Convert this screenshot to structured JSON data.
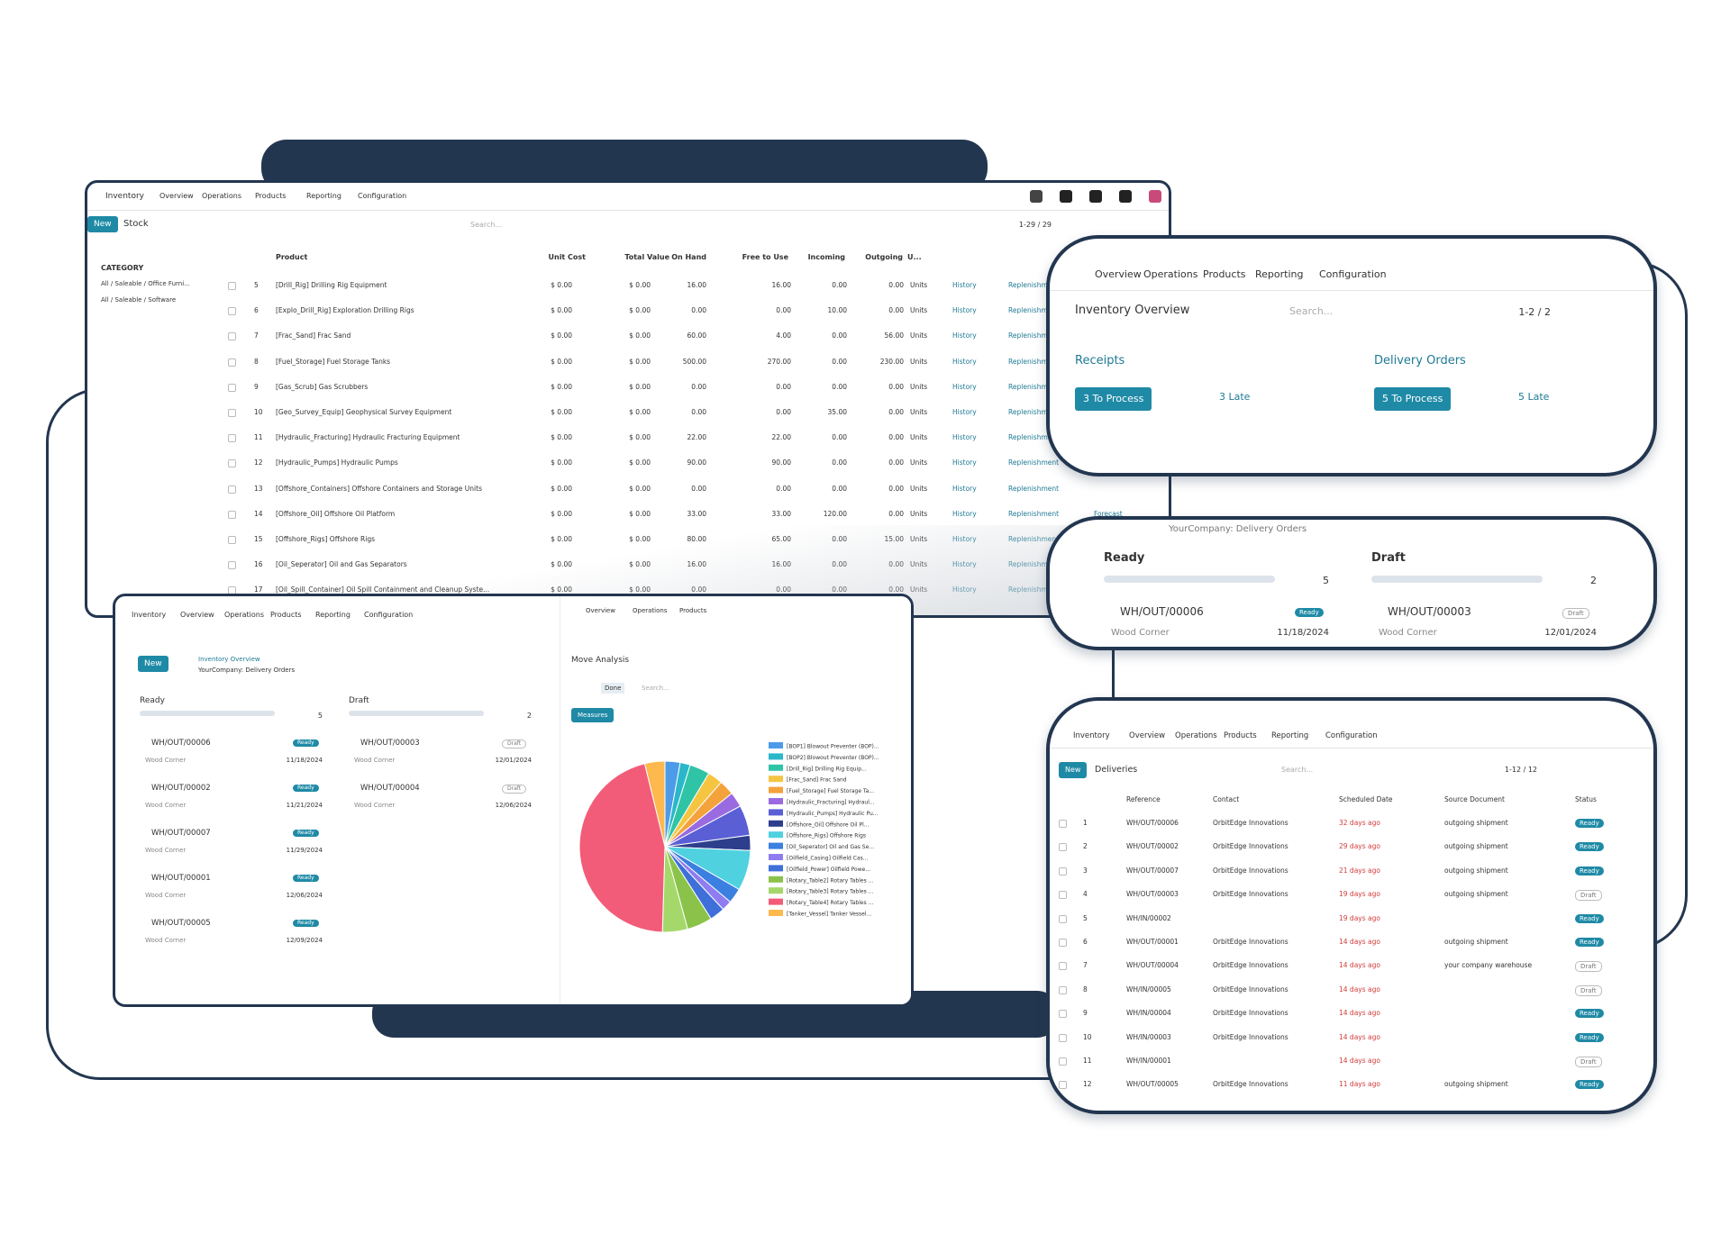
{
  "stock": {
    "menu": [
      "Inventory",
      "Overview",
      "Operations",
      "Products",
      "Reporting",
      "Configuration"
    ],
    "new": "New",
    "title": "Stock",
    "search": "Search...",
    "pager": "1-29 / 29",
    "category": "CATEGORY",
    "categories": [
      "All / Saleable / Office Furni...",
      "All / Saleable / Software"
    ],
    "columns": [
      "Product",
      "Unit Cost",
      "Total Value",
      "On Hand",
      "Free to Use",
      "Incoming",
      "Outgoing",
      "U..."
    ],
    "unit": "Units",
    "actions": [
      "History",
      "Replenishment"
    ],
    "rows": [
      [
        "5",
        "[Drill_Rig] Drilling Rig Equipment",
        "$ 0.00",
        "$ 0.00",
        "16.00",
        "16.00",
        "0.00",
        "0.00"
      ],
      [
        "6",
        "[Explo_Drill_Rig] Exploration Drilling Rigs",
        "$ 0.00",
        "$ 0.00",
        "0.00",
        "0.00",
        "10.00",
        "0.00"
      ],
      [
        "7",
        "[Frac_Sand] Frac Sand",
        "$ 0.00",
        "$ 0.00",
        "60.00",
        "4.00",
        "0.00",
        "56.00"
      ],
      [
        "8",
        "[Fuel_Storage] Fuel Storage Tanks",
        "$ 0.00",
        "$ 0.00",
        "500.00",
        "270.00",
        "0.00",
        "230.00"
      ],
      [
        "9",
        "[Gas_Scrub] Gas Scrubbers",
        "$ 0.00",
        "$ 0.00",
        "0.00",
        "0.00",
        "0.00",
        "0.00"
      ],
      [
        "10",
        "[Geo_Survey_Equip] Geophysical Survey Equipment",
        "$ 0.00",
        "$ 0.00",
        "0.00",
        "0.00",
        "35.00",
        "0.00"
      ],
      [
        "11",
        "[Hydraulic_Fracturing] Hydraulic Fracturing Equipment",
        "$ 0.00",
        "$ 0.00",
        "22.00",
        "22.00",
        "0.00",
        "0.00"
      ],
      [
        "12",
        "[Hydraulic_Pumps] Hydraulic Pumps",
        "$ 0.00",
        "$ 0.00",
        "90.00",
        "90.00",
        "0.00",
        "0.00"
      ],
      [
        "13",
        "[Offshore_Containers] Offshore Containers and Storage Units",
        "$ 0.00",
        "$ 0.00",
        "0.00",
        "0.00",
        "0.00",
        "0.00"
      ],
      [
        "14",
        "[Offshore_Oil] Offshore Oil Platform",
        "$ 0.00",
        "$ 0.00",
        "33.00",
        "33.00",
        "120.00",
        "0.00"
      ],
      [
        "15",
        "[Offshore_Rigs] Offshore Rigs",
        "$ 0.00",
        "$ 0.00",
        "80.00",
        "65.00",
        "0.00",
        "15.00"
      ],
      [
        "16",
        "[Oil_Seperator] Oil and Gas Separators",
        "$ 0.00",
        "$ 0.00",
        "16.00",
        "16.00",
        "0.00",
        "0.00"
      ],
      [
        "17",
        "[Oil_Spill_Container] Oil Spill Containment and Cleanup Syste...",
        "$ 0.00",
        "$ 0.00",
        "0.00",
        "0.00",
        "0.00",
        "0.00"
      ]
    ],
    "forecast": "Forecast"
  },
  "overview": {
    "menu": [
      "Overview",
      "Operations",
      "Products",
      "Reporting",
      "Configuration"
    ],
    "title": "Inventory Overview",
    "search": "Search...",
    "pager": "1-2 / 2",
    "cards": [
      {
        "name": "Receipts",
        "button": "3 To Process",
        "late": "3 Late"
      },
      {
        "name": "Delivery Orders",
        "button": "5 To Process",
        "late": "5 Late"
      }
    ]
  },
  "zoom": {
    "breadcrumb": "YourCompany: Delivery Orders",
    "columns": [
      {
        "name": "Ready",
        "count": 5,
        "ref": "WH/OUT/00006",
        "partner": "Wood Corner",
        "badge": "Ready",
        "date": "11/18/2024"
      },
      {
        "name": "Draft",
        "count": 2,
        "ref": "WH/OUT/00003",
        "partner": "Wood Corner",
        "badge": "Draft",
        "date": "12/01/2024"
      }
    ]
  },
  "kanban": {
    "menu": [
      "Inventory",
      "Overview",
      "Operations",
      "Products",
      "Reporting",
      "Configuration"
    ],
    "new": "New",
    "breadcrumb": [
      "Inventory Overview",
      "YourCompany: Delivery Orders"
    ],
    "columns": [
      {
        "name": "Ready",
        "count": 5,
        "badge": "Ready",
        "cards": [
          {
            "ref": "WH/OUT/00006",
            "partner": "Wood Corner",
            "date": "11/18/2024"
          },
          {
            "ref": "WH/OUT/00002",
            "partner": "Wood Corner",
            "date": "11/21/2024"
          },
          {
            "ref": "WH/OUT/00007",
            "partner": "Wood Corner",
            "date": "11/29/2024"
          },
          {
            "ref": "WH/OUT/00001",
            "partner": "Wood Corner",
            "date": "12/06/2024"
          },
          {
            "ref": "WH/OUT/00005",
            "partner": "Wood Corner",
            "date": "12/09/2024"
          }
        ]
      },
      {
        "name": "Draft",
        "count": 2,
        "badge": "Draft",
        "cards": [
          {
            "ref": "WH/OUT/00003",
            "partner": "Wood Corner",
            "date": "12/01/2024"
          },
          {
            "ref": "WH/OUT/00004",
            "partner": "Wood Corner",
            "date": "12/06/2024"
          }
        ]
      }
    ]
  },
  "analysis": {
    "menu": [
      "Overview",
      "Operations",
      "Products"
    ],
    "title": "Move Analysis",
    "filter": "Done",
    "search": "Search...",
    "measures": "Measures"
  },
  "chart_data": {
    "type": "pie",
    "categories": [
      "[BOP1] Blowout Preventer (BOP)...",
      "[BOP2] Blowout Preventer (BOP)...",
      "[Drill_Rig] Drilling Rig Equip...",
      "[Frac_Sand] Frac Sand",
      "[Fuel_Storage] Fuel Storage Ta...",
      "[Hydraulic_Fracturing] Hydraul...",
      "[Hydraulic_Pumps] Hydraulic Pu...",
      "[Offshore_Oil] Offshore Oil Pl...",
      "[Offshore_Rigs] Offshore Rigs",
      "[Oil_Seperator] Oil and Gas Se...",
      "[Oilfield_Casing] Oilfield Cas...",
      "[Oilfield_Power] Oilfield Powe...",
      "[Rotary_Table2] Rotary Tables ...",
      "[Rotary_Table3] Rotary Tables ...",
      "[Rotary_Table4] Rotary Tables ...",
      "[Tanker_Vessel] Tanker Vessel..."
    ],
    "values": [
      3,
      2,
      4,
      3,
      3,
      3,
      6,
      3,
      8,
      3,
      2,
      3,
      5,
      5,
      48,
      4
    ],
    "colors": [
      "#4c9be8",
      "#2ab7ca",
      "#2fc4a6",
      "#f5c542",
      "#f4a23c",
      "#9a6ae0",
      "#5a5fd6",
      "#2d3e8c",
      "#4fd1e0",
      "#3b7fe0",
      "#8e7cf0",
      "#3f6fd8",
      "#8bc34a",
      "#a5d86b",
      "#f25c78",
      "#fdb84e"
    ]
  },
  "deliveries": {
    "menu": [
      "Inventory",
      "Overview",
      "Operations",
      "Products",
      "Reporting",
      "Configuration"
    ],
    "new": "New",
    "title": "Deliveries",
    "search": "Search...",
    "pager": "1-12 / 12",
    "columns": [
      "Reference",
      "Contact",
      "Scheduled Date",
      "Source Document",
      "Status"
    ],
    "rows": [
      [
        "1",
        "WH/OUT/00006",
        "OrbitEdge Innovations",
        "32 days ago",
        "outgoing shipment",
        "Ready"
      ],
      [
        "2",
        "WH/OUT/00002",
        "OrbitEdge Innovations",
        "29 days ago",
        "outgoing shipment",
        "Ready"
      ],
      [
        "3",
        "WH/OUT/00007",
        "OrbitEdge Innovations",
        "21 days ago",
        "outgoing shipment",
        "Ready"
      ],
      [
        "4",
        "WH/OUT/00003",
        "OrbitEdge Innovations",
        "19 days ago",
        "outgoing shipment",
        "Draft"
      ],
      [
        "5",
        "WH/IN/00002",
        null,
        "19 days ago",
        null,
        "Ready"
      ],
      [
        "6",
        "WH/OUT/00001",
        "OrbitEdge Innovations",
        "14 days ago",
        "outgoing shipment",
        "Ready"
      ],
      [
        "7",
        "WH/OUT/00004",
        "OrbitEdge Innovations",
        "14 days ago",
        "your company warehouse",
        "Draft"
      ],
      [
        "8",
        "WH/IN/00005",
        "OrbitEdge Innovations",
        "14 days ago",
        null,
        "Draft"
      ],
      [
        "9",
        "WH/IN/00004",
        "OrbitEdge Innovations",
        "14 days ago",
        null,
        "Ready"
      ],
      [
        "10",
        "WH/IN/00003",
        "OrbitEdge Innovations",
        "14 days ago",
        null,
        "Ready"
      ],
      [
        "11",
        "WH/IN/00001",
        null,
        "14 days ago",
        null,
        "Draft"
      ],
      [
        "12",
        "WH/OUT/00005",
        "OrbitEdge Innovations",
        "11 days ago",
        "outgoing shipment",
        "Ready"
      ]
    ]
  }
}
